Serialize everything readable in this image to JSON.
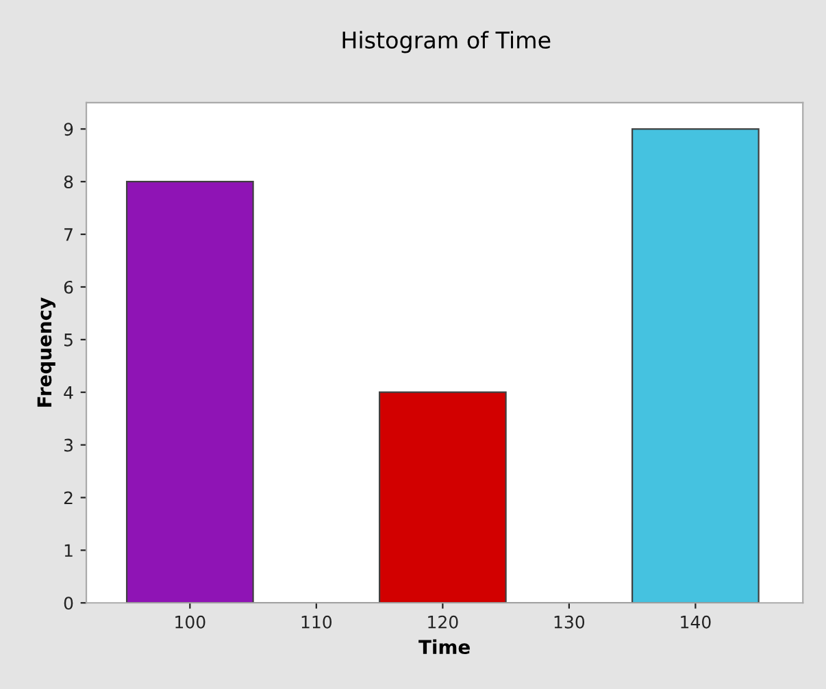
{
  "chart_data": {
    "type": "histogram",
    "title": "Histogram of Time",
    "xlabel": "Time",
    "ylabel": "Frequency",
    "bins": [
      95,
      105,
      115,
      125,
      135,
      145
    ],
    "values": [
      8,
      0,
      4,
      0,
      9
    ],
    "colors": [
      "#8f14b5",
      "#404040",
      "#d20000",
      "#404040",
      "#45c2e0"
    ],
    "xlim": [
      91.8,
      148.5
    ],
    "xticks": [
      100,
      110,
      120,
      130,
      140
    ],
    "ylim": [
      0,
      9.5
    ],
    "yticks": [
      0,
      1,
      2,
      3,
      4,
      5,
      6,
      7,
      8,
      9
    ],
    "grid": false,
    "legend": false
  }
}
